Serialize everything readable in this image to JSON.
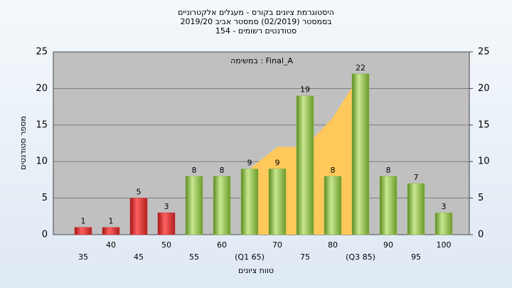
{
  "chart_data": {
    "type": "bar",
    "title": "היסטוגרמת ציונים בקורס - מעגלים אלקטרוניים",
    "subtitle": "בסמסטר  (02/2019)  סמסטר אביב 2019/20",
    "subtitle2": "סטודנטים רשומים - 154",
    "annotation": "במשימה : Final_A",
    "y_label": "מספר סטודנטים",
    "x_label": "טווח ציונים",
    "categories": [
      "35",
      "40",
      "45",
      "50",
      "55",
      "60",
      "(Q1 65)",
      "70",
      "75",
      "80",
      "(Q3 85)",
      "90",
      "95",
      "100"
    ],
    "values": [
      1,
      1,
      5,
      3,
      8,
      8,
      9,
      9,
      19,
      8,
      22,
      8,
      7,
      3
    ],
    "colors": [
      "#d83030",
      "#d83030",
      "#d83030",
      "#d83030",
      "#8cba48",
      "#8cba48",
      "#8cba48",
      "#8cba48",
      "#8cba48",
      "#8cba48",
      "#8cba48",
      "#8cba48",
      "#8cba48",
      "#8cba48"
    ],
    "area_values": [
      null,
      null,
      null,
      null,
      null,
      null,
      9,
      12,
      12,
      16,
      22,
      null,
      null,
      null
    ],
    "area_color": "#ffc85a",
    "ylim": [
      0,
      25
    ],
    "yticks": [
      0,
      5,
      10,
      15,
      20,
      25
    ],
    "y2lim": [
      0,
      25
    ],
    "y2ticks": [
      0,
      5,
      10,
      15,
      20,
      25
    ],
    "grid": true
  }
}
